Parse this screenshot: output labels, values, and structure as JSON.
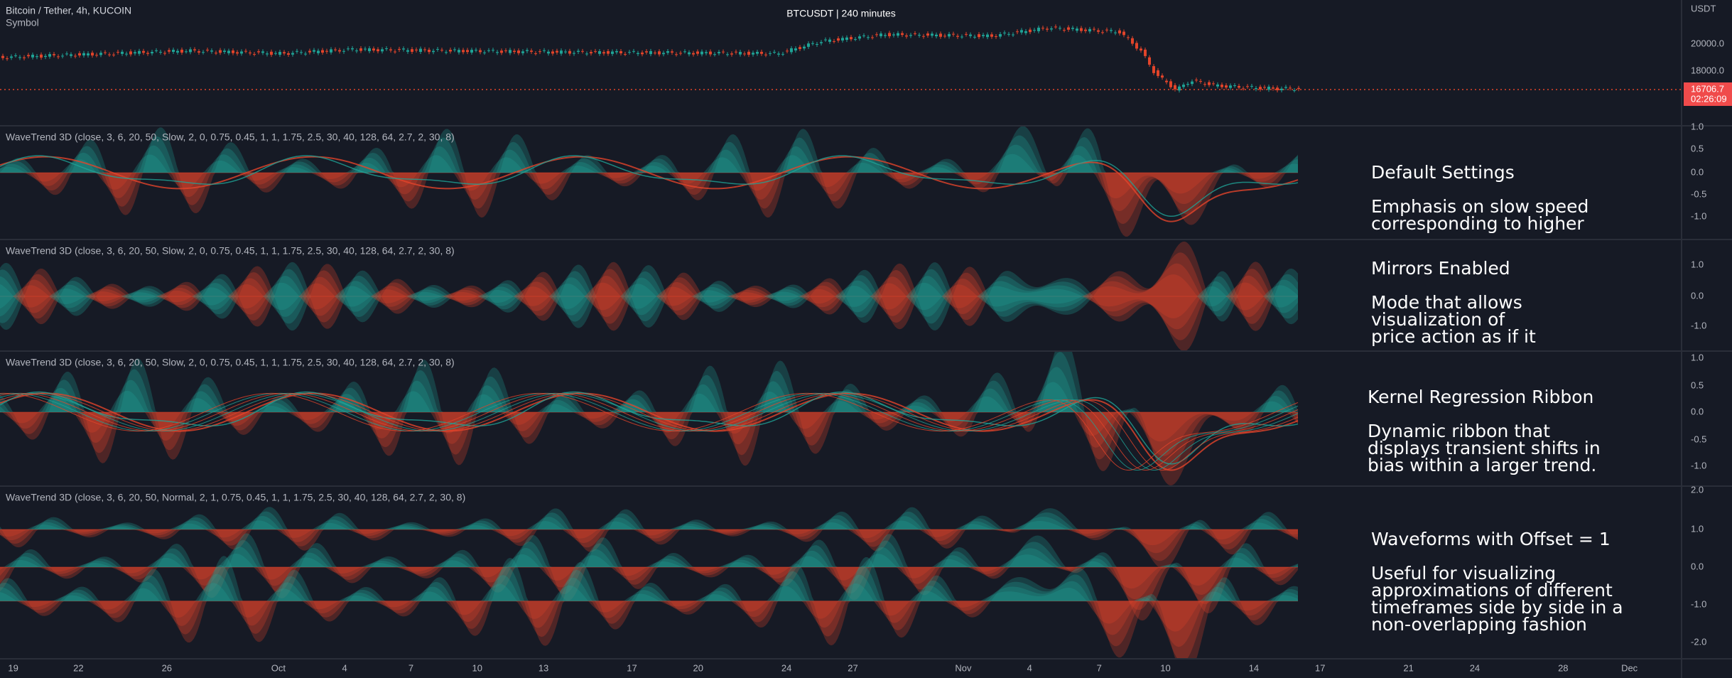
{
  "header": {
    "symbol": "Bitcoin / Tether, 4h, KUCOIN",
    "subtitle": "Symbol",
    "center_title": "BTCUSDT | 240 minutes"
  },
  "price_axis": {
    "unit": "USDT",
    "labels": [
      "20000.0",
      "18000.0"
    ],
    "last_price": "16706.7",
    "countdown": "02:26:09"
  },
  "panes": [
    {
      "title": "WaveTrend 3D (close, 3, 6, 20, 50, Slow, 2, 0, 0.75, 0.45, 1, 1, 1.75, 2.5, 30, 40, 128, 64, 2.7, 2, 30, 8)",
      "axis_labels": [
        "1.0",
        "0.5",
        "0.0",
        "-0.5",
        "-1.0"
      ],
      "note_title": "Default Settings",
      "note_lines": [
        "Emphasis on slow speed",
        "corresponding to higher"
      ]
    },
    {
      "title": "WaveTrend 3D (close, 3, 6, 20, 50, Slow, 2, 0, 0.75, 0.45, 1, 1, 1.75, 2.5, 30, 40, 128, 64, 2.7, 2, 30, 8)",
      "axis_labels": [
        "1.0",
        "0.0",
        "-1.0"
      ],
      "note_title": "Mirrors Enabled",
      "note_lines": [
        "Mode that allows",
        "visualization of",
        "price action as if it"
      ]
    },
    {
      "title": "WaveTrend 3D (close, 3, 6, 20, 50, Slow, 2, 0, 0.75, 0.45, 1, 1, 1.75, 2.5, 30, 40, 128, 64, 2.7, 2, 30, 8)",
      "axis_labels": [
        "1.0",
        "0.5",
        "0.0",
        "-0.5",
        "-1.0"
      ],
      "note_title": "Kernel Regression Ribbon",
      "note_lines": [
        "Dynamic ribbon that",
        "displays transient shifts in",
        "bias within a larger trend."
      ]
    },
    {
      "title": "WaveTrend 3D (close, 3, 6, 20, 50, Normal, 2, 1, 0.75, 0.45, 1, 1, 1.75, 2.5, 30, 40, 128, 64, 2.7, 2, 30, 8)",
      "axis_labels": [
        "2.0",
        "1.0",
        "0.0",
        "-1.0",
        "-2.0"
      ],
      "note_title": "Waveforms with Offset = 1",
      "note_lines": [
        "Useful for visualizing",
        "approximations of different",
        "timeframes side by side in a",
        "non-overlapping fashion"
      ]
    }
  ],
  "x_axis": {
    "labels": [
      "19",
      "22",
      "26",
      "Oct",
      "4",
      "7",
      "10",
      "13",
      "17",
      "20",
      "24",
      "27",
      "Nov",
      "4",
      "7",
      "10",
      "14",
      "17",
      "21",
      "24",
      "28",
      "Dec"
    ]
  }
}
